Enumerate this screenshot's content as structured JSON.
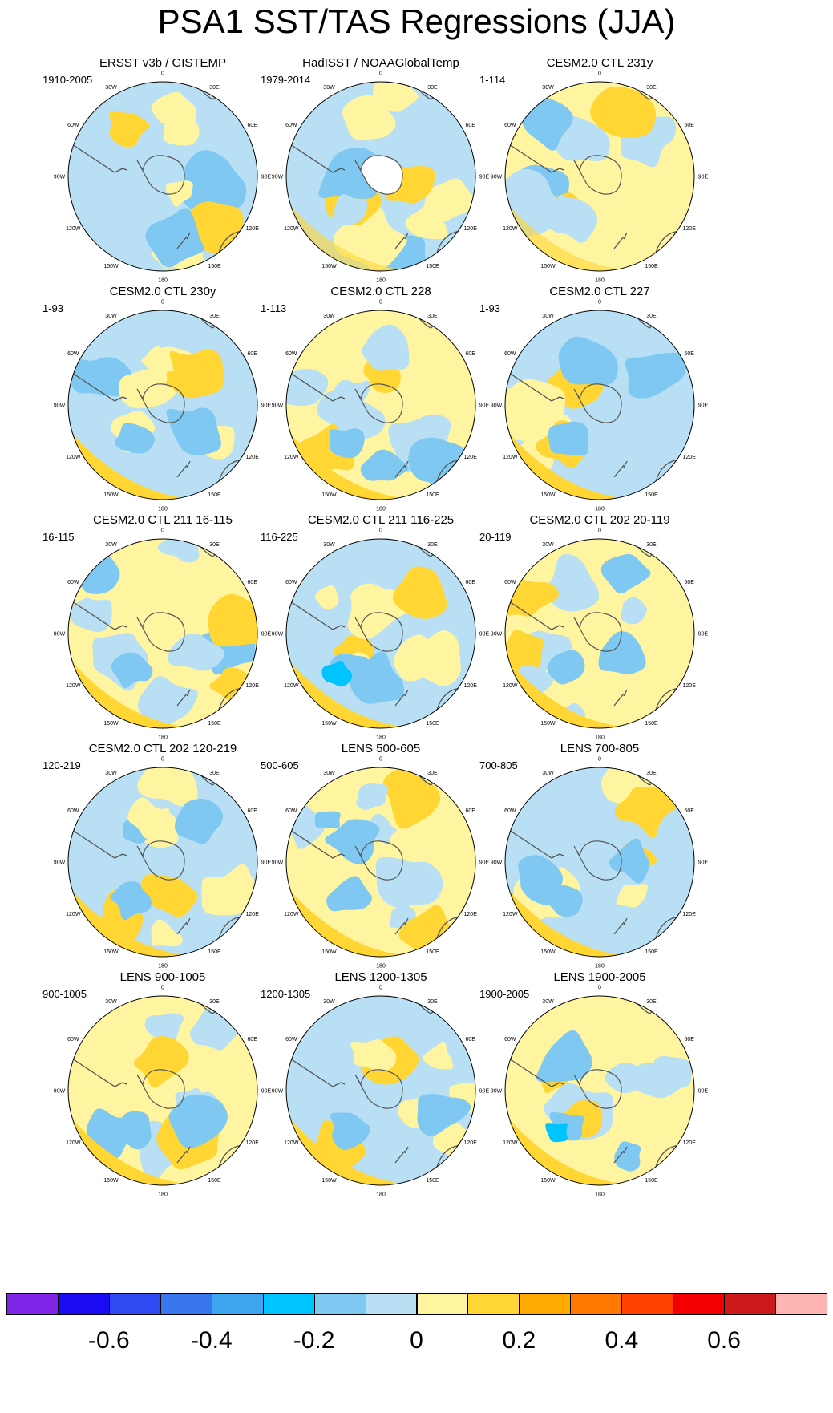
{
  "chart_data": {
    "type": "polar-contour-map-panels",
    "title": "PSA1 SST/TAS Regressions (JJA)",
    "projection": "South polar stereographic",
    "longitude_labels": [
      "0",
      "30E",
      "60E",
      "90E",
      "120E",
      "150E",
      "180",
      "150W",
      "120W",
      "90W",
      "60W",
      "30W"
    ],
    "colorbar": {
      "colors": [
        "#7f25e8",
        "#1a0bf2",
        "#2e4af0",
        "#3876ee",
        "#3ca6f0",
        "#00c4ff",
        "#7ec8f2",
        "#b9dff5",
        "#fff5a0",
        "#ffd633",
        "#ffaa00",
        "#ff7800",
        "#ff4200",
        "#f20000",
        "#cc1a1a",
        "#ffb4b4"
      ],
      "tick_labels": [
        "-0.6",
        "-0.4",
        "-0.2",
        "0",
        "0.2",
        "0.4",
        "0.6"
      ]
    },
    "panels": [
      {
        "title": "ERSST v3b / GISTEMP",
        "period": "1910-2005"
      },
      {
        "title": "HadISST / NOAAGlobalTemp",
        "period": "1979-2014"
      },
      {
        "title": "CESM2.0 CTL 231y",
        "period": "1-114"
      },
      {
        "title": "CESM2.0 CTL 230y",
        "period": "1-93"
      },
      {
        "title": "CESM2.0 CTL 228",
        "period": "1-113"
      },
      {
        "title": "CESM2.0 CTL 227",
        "period": "1-93"
      },
      {
        "title": "CESM2.0 CTL 211 16-115",
        "period": "16-115"
      },
      {
        "title": "CESM2.0 CTL 211 116-225",
        "period": "116-225"
      },
      {
        "title": "CESM2.0 CTL 202 20-119",
        "period": "20-119"
      },
      {
        "title": "CESM2.0 CTL 202 120-219",
        "period": "120-219"
      },
      {
        "title": "LENS 500-605",
        "period": "500-605"
      },
      {
        "title": "LENS 700-805",
        "period": "700-805"
      },
      {
        "title": "LENS 900-1005",
        "period": "900-1005"
      },
      {
        "title": "LENS 1200-1305",
        "period": "1200-1305"
      },
      {
        "title": "LENS 1900-2005",
        "period": "1900-2005"
      }
    ]
  }
}
